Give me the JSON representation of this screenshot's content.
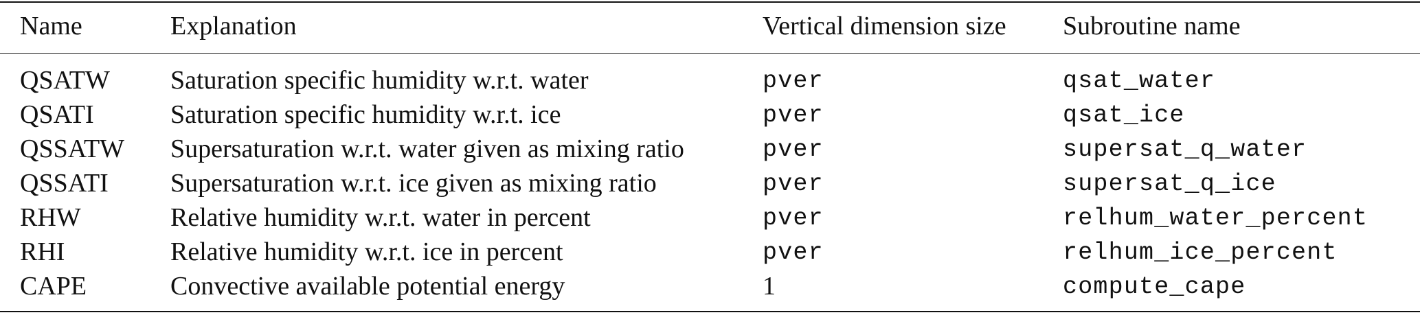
{
  "table": {
    "headers": [
      "Name",
      "Explanation",
      "Vertical dimension size",
      "Subroutine name"
    ],
    "rows": [
      {
        "name": "QSATW",
        "explanation": "Saturation specific humidity w.r.t. water",
        "dimension": "pver",
        "subroutine": "qsat_water"
      },
      {
        "name": "QSATI",
        "explanation": "Saturation specific humidity w.r.t. ice",
        "dimension": "pver",
        "subroutine": "qsat_ice"
      },
      {
        "name": "QSSATW",
        "explanation": "Supersaturation w.r.t. water given as mixing ratio",
        "dimension": "pver",
        "subroutine": "supersat_q_water"
      },
      {
        "name": "QSSATI",
        "explanation": "Supersaturation w.r.t. ice given as mixing ratio",
        "dimension": "pver",
        "subroutine": "supersat_q_ice"
      },
      {
        "name": "RHW",
        "explanation": "Relative humidity w.r.t. water in percent",
        "dimension": "pver",
        "subroutine": "relhum_water_percent"
      },
      {
        "name": "RHI",
        "explanation": "Relative humidity w.r.t. ice in percent",
        "dimension": "pver",
        "subroutine": "relhum_ice_percent"
      },
      {
        "name": "CAPE",
        "explanation": "Convective available potential energy",
        "dimension": "1",
        "subroutine": "compute_cape"
      }
    ]
  }
}
